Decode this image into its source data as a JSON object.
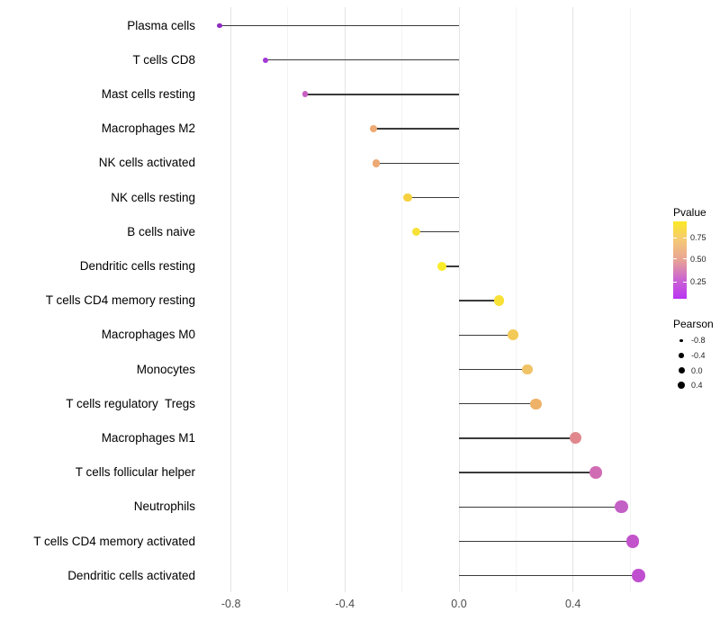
{
  "chart_data": {
    "type": "lollipop",
    "orientation": "horizontal",
    "title": "",
    "xlabel": "",
    "ylabel": "",
    "xlim": [
      -0.91,
      0.7
    ],
    "grid": "vertical-only",
    "categories": [
      "Plasma cells",
      "T cells CD8",
      "Mast cells resting",
      "Macrophages M2",
      "NK cells activated",
      "NK cells resting",
      "B cells naive",
      "Dendritic cells resting",
      "T cells CD4 memory resting",
      "Macrophages M0",
      "Monocytes",
      "T cells regulatory  Tregs",
      "Macrophages M1",
      "T cells follicular helper",
      "Neutrophils",
      "T cells CD4 memory activated",
      "Dendritic cells activated"
    ],
    "series": [
      {
        "name": "Pearson",
        "values": [
          -0.84,
          -0.68,
          -0.54,
          -0.3,
          -0.29,
          -0.18,
          -0.15,
          -0.06,
          0.14,
          0.19,
          0.24,
          0.27,
          0.41,
          0.48,
          0.57,
          0.61,
          0.63
        ]
      }
    ],
    "point_colors": [
      "#8e2bc0",
      "#a23ad4",
      "#c75fc2",
      "#edaa72",
      "#eda974",
      "#f6d13f",
      "#f8e136",
      "#fbec29",
      "#f8e136",
      "#f3ca57",
      "#f0c367",
      "#eeb268",
      "#e0888d",
      "#d06cb4",
      "#c360c6",
      "#c253cb",
      "#c04fd0"
    ],
    "x_tick_labels": [
      "-0.8",
      "-0.4",
      "0.0",
      "0.4"
    ],
    "x_tick_values": [
      -0.8,
      -0.4,
      0.0,
      0.4
    ],
    "x_minor_tick_values": [
      -0.6,
      -0.2,
      0.2,
      0.6
    ],
    "legend_position": "right",
    "legends": {
      "pvalue": {
        "title": "Pvalue",
        "tick_labels": [
          "0.75",
          "0.50",
          "0.25"
        ],
        "gradient_top_to_bottom": [
          "#fbe926",
          "#f5c878",
          "#e8a295",
          "#cb64d2",
          "#b935f2"
        ]
      },
      "pearson": {
        "title": "Pearson",
        "dot_color": "#000000",
        "entries": [
          {
            "label": "-0.8",
            "radius": 1.7
          },
          {
            "label": "-0.4",
            "radius": 2.8
          },
          {
            "label": "0.0",
            "radius": 3.5
          },
          {
            "label": "0.4",
            "radius": 4.1
          }
        ]
      }
    },
    "stem_color": "#3a3a3a",
    "axis_text_color": "#4d4d4d",
    "label_text_color": "#000000"
  }
}
